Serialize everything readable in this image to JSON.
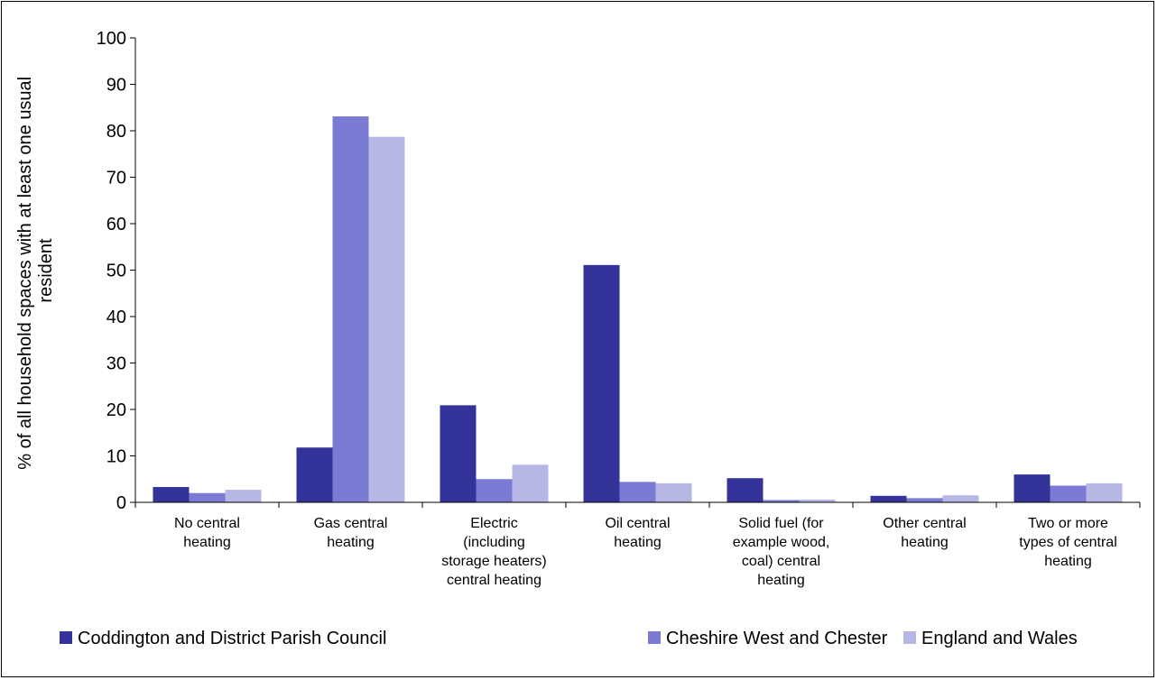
{
  "chart_data": {
    "type": "bar",
    "title": "",
    "xlabel": "",
    "ylabel": "% of all household spaces with at least one usual resident",
    "ylabel_lines": [
      "% of all household spaces with at least one usual",
      "resident"
    ],
    "ylim": [
      0,
      100
    ],
    "yticks": [
      0,
      10,
      20,
      30,
      40,
      50,
      60,
      70,
      80,
      90,
      100
    ],
    "grid": false,
    "legend_position": "bottom",
    "categories": [
      "No central heating",
      "Gas central heating",
      "Electric (including storage heaters) central heating",
      "Oil central heating",
      "Solid fuel (for example wood, coal) central heating",
      "Other central heating",
      "Two or more types of central heating"
    ],
    "category_lines": [
      [
        "No central",
        "heating"
      ],
      [
        "Gas central",
        "heating"
      ],
      [
        "Electric",
        "(including",
        "storage heaters)",
        "central heating"
      ],
      [
        "Oil central",
        "heating"
      ],
      [
        "Solid fuel (for",
        "example wood,",
        "coal) central",
        "heating"
      ],
      [
        "Other central",
        "heating"
      ],
      [
        "Two or more",
        "types of central",
        "heating"
      ]
    ],
    "series": [
      {
        "name": "Coddington and District Parish Council",
        "color": "#333399",
        "values": [
          3.3,
          11.8,
          20.9,
          51.1,
          5.2,
          1.4,
          6.0
        ]
      },
      {
        "name": "Cheshire West and Chester",
        "color": "#7b7bd4",
        "values": [
          2.0,
          83.1,
          5.0,
          4.4,
          0.5,
          0.9,
          3.6
        ]
      },
      {
        "name": "England and Wales",
        "color": "#b7b7e6",
        "values": [
          2.7,
          78.7,
          8.1,
          4.1,
          0.6,
          1.5,
          4.1
        ]
      }
    ]
  }
}
